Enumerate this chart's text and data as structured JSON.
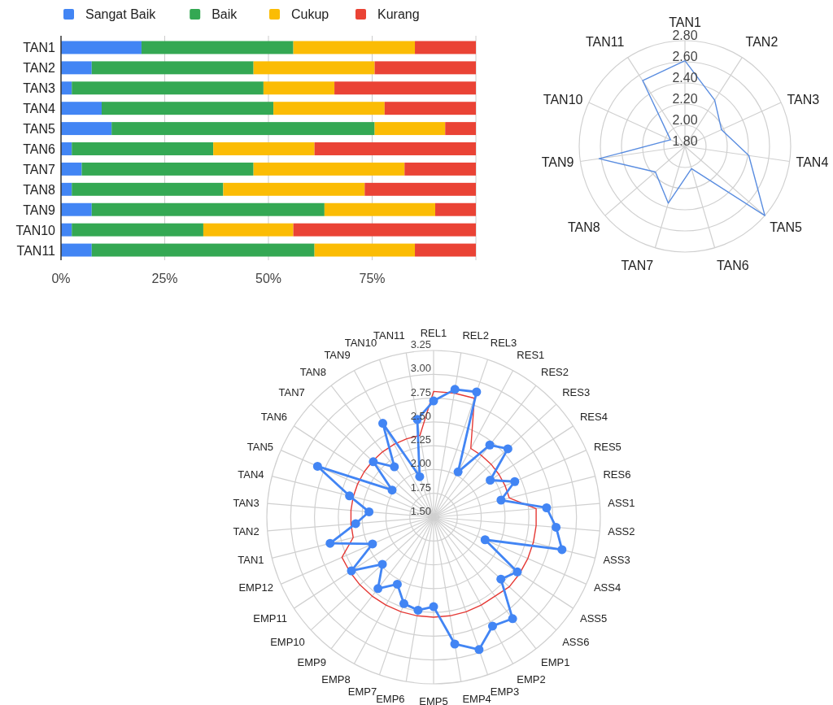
{
  "chart_data": [
    {
      "type": "bar",
      "orientation": "horizontal",
      "stacked": true,
      "legend": "top",
      "grid": "x",
      "categories": [
        "TAN1",
        "TAN2",
        "TAN3",
        "TAN4",
        "TAN5",
        "TAN6",
        "TAN7",
        "TAN8",
        "TAN9",
        "TAN10",
        "TAN11"
      ],
      "series": [
        {
          "name": "Sangat Baik",
          "color": "#4285f4",
          "values": [
            19.4,
            7.4,
            2.6,
            9.8,
            12.2,
            2.6,
            5.0,
            2.6,
            7.4,
            2.6,
            7.4
          ]
        },
        {
          "name": "Baik",
          "color": "#34a853",
          "values": [
            36.6,
            39.0,
            46.2,
            41.4,
            63.4,
            34.1,
            41.4,
            36.5,
            56.1,
            31.7,
            53.7
          ]
        },
        {
          "name": "Cukup",
          "color": "#fbbc04",
          "values": [
            29.3,
            29.2,
            17.1,
            26.8,
            17.0,
            24.4,
            36.4,
            34.1,
            26.7,
            21.7,
            24.2
          ]
        },
        {
          "name": "Kurang",
          "color": "#ea4335",
          "values": [
            14.7,
            24.4,
            34.1,
            22.0,
            7.4,
            38.9,
            17.2,
            26.8,
            9.8,
            44.0,
            14.7
          ]
        }
      ],
      "xlim": [
        0,
        100
      ],
      "xticks": [
        {
          "value": 0,
          "label": "0%"
        },
        {
          "value": 25,
          "label": "25%"
        },
        {
          "value": 50,
          "label": "50%"
        },
        {
          "value": 75,
          "label": "75%"
        },
        {
          "value": 100,
          "label": null
        }
      ]
    },
    {
      "type": "radar",
      "grid": true,
      "categories": [
        "TAN1",
        "TAN2",
        "TAN3",
        "TAN4",
        "TAN5",
        "TAN6",
        "TAN7",
        "TAN8",
        "TAN9",
        "TAN10",
        "TAN11"
      ],
      "series": [
        {
          "color": "#5a8de0",
          "marker": "none",
          "values": [
            2.61,
            2.32,
            2.18,
            2.41,
            2.8,
            2.02,
            2.36,
            2.17,
            2.62,
            1.95,
            2.54
          ]
        }
      ],
      "ylim": [
        1.8,
        2.8
      ],
      "yticks": [
        {
          "value": 1.8,
          "label": "1.80"
        },
        {
          "value": 2.0,
          "label": "2.00"
        },
        {
          "value": 2.2,
          "label": "2.20"
        },
        {
          "value": 2.4,
          "label": "2.40"
        },
        {
          "value": 2.6,
          "label": "2.60"
        },
        {
          "value": 2.8,
          "label": "2.80"
        }
      ]
    },
    {
      "type": "radar",
      "grid": true,
      "categories": [
        "REL1",
        "REL2",
        "REL3",
        "RES1",
        "RES2",
        "RES3",
        "RES4",
        "RES5",
        "RES6",
        "ASS1",
        "ASS2",
        "ASS3",
        "ASS4",
        "ASS5",
        "ASS6",
        "EMP1",
        "EMP2",
        "EMP3",
        "EMP4",
        "EMP5",
        "EMP6",
        "EMP7",
        "EMP8",
        "EMP9",
        "EMP10",
        "EMP11",
        "EMP12",
        "TAN1",
        "TAN2",
        "TAN3",
        "TAN4",
        "TAN5",
        "TAN6",
        "TAN7",
        "TAN8",
        "TAN9",
        "TAN10",
        "TAN11"
      ],
      "series": [
        {
          "color": "#e53935",
          "marker": "none",
          "values": [
            2.82,
            2.82,
            2.82,
            2.32,
            2.32,
            2.32,
            2.32,
            2.32,
            2.32,
            2.58,
            2.58,
            2.58,
            2.58,
            2.58,
            2.58,
            2.55,
            2.55,
            2.55,
            2.55,
            2.55,
            2.55,
            2.55,
            2.55,
            2.55,
            2.55,
            2.55,
            2.55,
            2.37,
            2.37,
            2.37,
            2.37,
            2.37,
            2.37,
            2.37,
            2.37,
            2.37,
            2.37,
            2.37
          ]
        },
        {
          "color": "#4285f4",
          "marker": "circle",
          "values": [
            2.72,
            2.86,
            2.89,
            2.04,
            2.46,
            2.56,
            2.21,
            2.43,
            2.23,
            2.69,
            2.79,
            2.89,
            2.09,
            2.55,
            2.46,
            2.85,
            2.8,
            2.97,
            2.85,
            2.44,
            2.49,
            2.46,
            2.3,
            2.45,
            2.23,
            2.53,
            2.2,
            2.62,
            2.32,
            2.18,
            2.41,
            2.83,
            2.02,
            2.36,
            2.17,
            2.62,
            1.95,
            2.54
          ]
        }
      ],
      "ylim": [
        1.5,
        3.25
      ],
      "yticks": [
        {
          "value": 1.5,
          "label": "1.50"
        },
        {
          "value": 1.75,
          "label": "1.75"
        },
        {
          "value": 2.0,
          "label": "2.00"
        },
        {
          "value": 2.25,
          "label": "2.25"
        },
        {
          "value": 2.5,
          "label": "2.50"
        },
        {
          "value": 2.75,
          "label": "2.75"
        },
        {
          "value": 3.0,
          "label": "3.00"
        },
        {
          "value": 3.25,
          "label": "3.25"
        }
      ]
    }
  ]
}
